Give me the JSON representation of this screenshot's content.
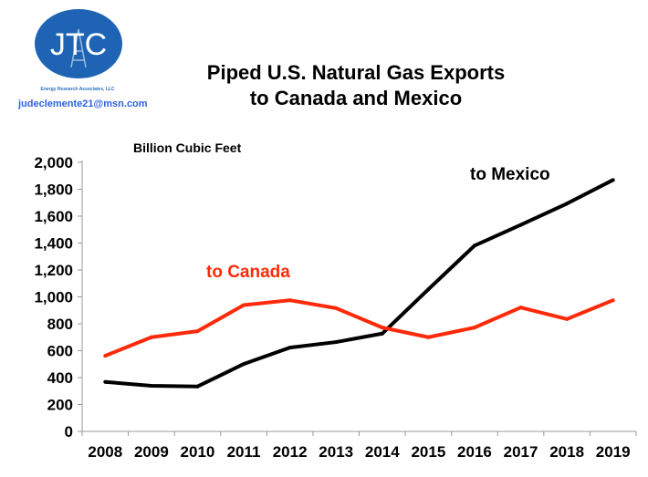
{
  "logo": {
    "letters": "JTC",
    "subtitle": "Energy Research Associates, LLC",
    "color": "#1f64b4"
  },
  "email": "judeclemente21@msn.com",
  "chart_data": {
    "type": "line",
    "title": "Piped U.S. Natural Gas Exports to Canada and Mexico",
    "title_lines": [
      "Piped U.S. Natural Gas Exports",
      "to Canada and Mexico"
    ],
    "ylabel": "Billion Cubic Feet",
    "xlabel": "",
    "categories": [
      "2008",
      "2009",
      "2010",
      "2011",
      "2012",
      "2013",
      "2014",
      "2015",
      "2016",
      "2017",
      "2018",
      "2019"
    ],
    "ylim": [
      0,
      2000
    ],
    "yticks": [
      "0",
      "200",
      "400",
      "600",
      "800",
      "1,000",
      "1,200",
      "1,400",
      "1,600",
      "1,800",
      "2,000"
    ],
    "grid": false,
    "series": [
      {
        "name": "to Mexico",
        "color": "#000000",
        "values": [
          368,
          339,
          334,
          501,
          623,
          664,
          727,
          1056,
          1381,
          1535,
          1693,
          1869
        ]
      },
      {
        "name": "to Canada",
        "color": "#ff2a0a",
        "values": [
          562,
          700,
          745,
          939,
          975,
          916,
          772,
          700,
          772,
          921,
          835,
          975
        ]
      }
    ]
  }
}
